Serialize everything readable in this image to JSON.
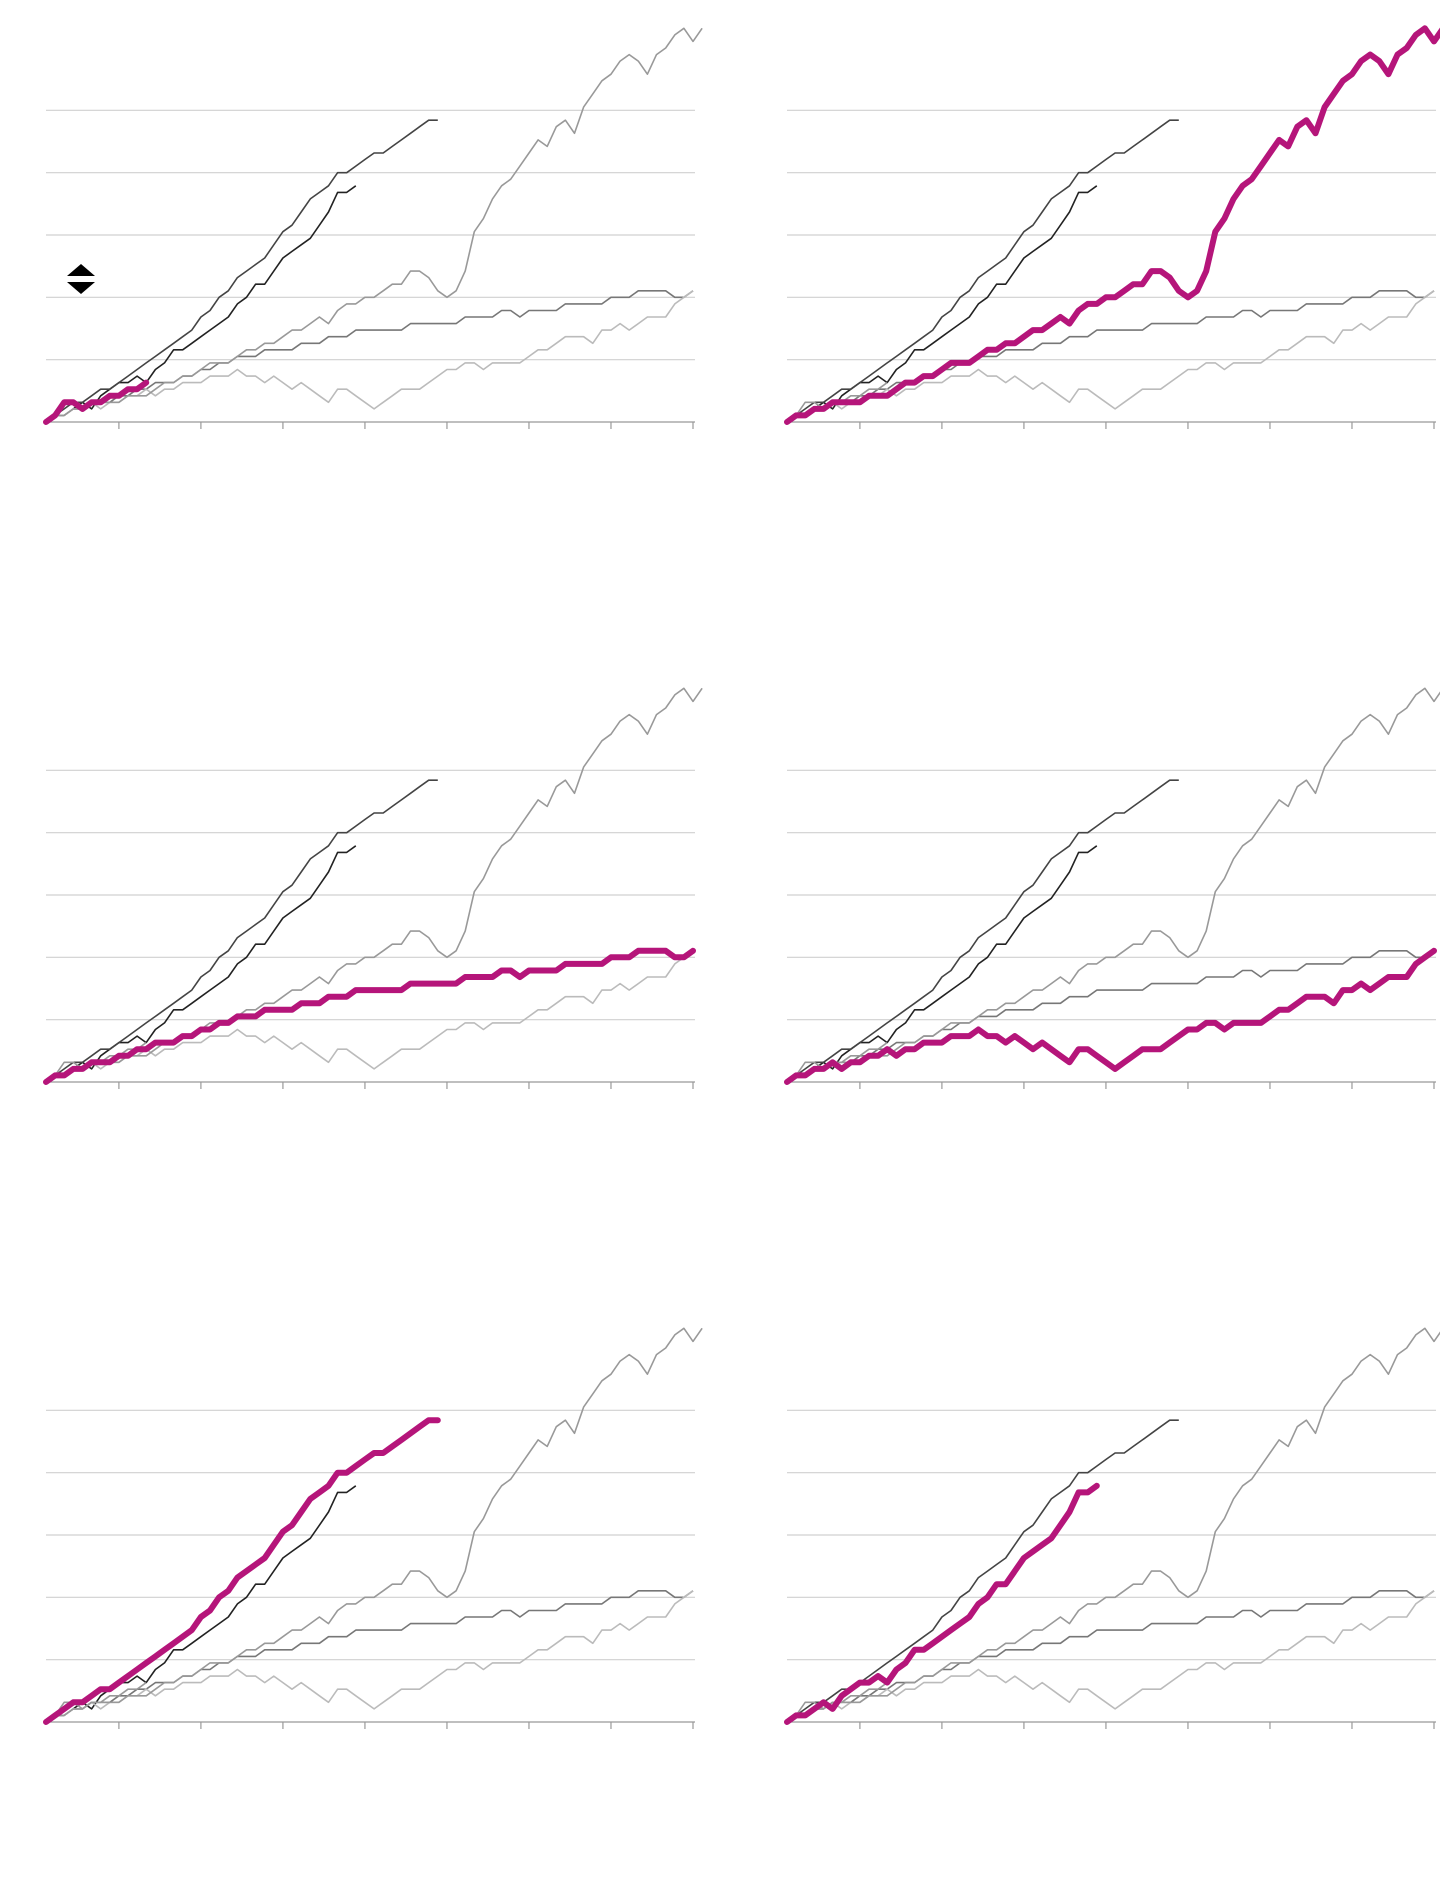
{
  "colors": {
    "highlight": "#b5157a",
    "grid": "#d0d0d0",
    "axis": "#999999"
  },
  "icons": {
    "sort": "sort-up-down-icon"
  },
  "chart_data": [
    {
      "type": "line",
      "highlight": "s6",
      "xlim": [
        0,
        71
      ],
      "ylim": [
        0,
        57
      ],
      "grid": true
    },
    {
      "type": "line",
      "highlight": "s5",
      "xlim": [
        0,
        71
      ],
      "ylim": [
        0,
        57
      ],
      "grid": true
    },
    {
      "type": "line",
      "highlight": "s3",
      "xlim": [
        0,
        71
      ],
      "ylim": [
        0,
        57
      ],
      "grid": true
    },
    {
      "type": "line",
      "highlight": "s4",
      "xlim": [
        0,
        71
      ],
      "ylim": [
        0,
        57
      ],
      "grid": true
    },
    {
      "type": "line",
      "highlight": "s2",
      "xlim": [
        0,
        71
      ],
      "ylim": [
        0,
        57
      ],
      "grid": true
    },
    {
      "type": "line",
      "highlight": "s1",
      "xlim": [
        0,
        71
      ],
      "ylim": [
        0,
        57
      ],
      "grid": true
    }
  ],
  "series": {
    "s1": {
      "shade": "#222222",
      "values": [
        0,
        1,
        1,
        2,
        3,
        2,
        4,
        5,
        6,
        6,
        7,
        6,
        8,
        9,
        11,
        11,
        12,
        13,
        14,
        15,
        16,
        18,
        19,
        21,
        21,
        23,
        25,
        26,
        27,
        28,
        30,
        32,
        35,
        35,
        36
      ]
    },
    "s2": {
      "shade": "#444444",
      "values": [
        0,
        1,
        2,
        3,
        3,
        4,
        5,
        5,
        6,
        7,
        8,
        9,
        10,
        11,
        12,
        13,
        14,
        16,
        17,
        19,
        20,
        22,
        23,
        24,
        25,
        27,
        29,
        30,
        32,
        34,
        35,
        36,
        38,
        38,
        39,
        40,
        41,
        41,
        42,
        43,
        44,
        45,
        46,
        46
      ]
    },
    "s3": {
      "shade": "#777777",
      "values": [
        0,
        1,
        1,
        2,
        2,
        3,
        3,
        3,
        4,
        4,
        5,
        5,
        6,
        6,
        6,
        7,
        7,
        8,
        8,
        9,
        9,
        10,
        10,
        10,
        11,
        11,
        11,
        11,
        12,
        12,
        12,
        13,
        13,
        13,
        14,
        14,
        14,
        14,
        14,
        14,
        15,
        15,
        15,
        15,
        15,
        15,
        16,
        16,
        16,
        16,
        17,
        17,
        16,
        17,
        17,
        17,
        17,
        18,
        18,
        18,
        18,
        18,
        19,
        19,
        19,
        20,
        20,
        20,
        20,
        19,
        19,
        20
      ]
    },
    "s4": {
      "shade": "#bbbbbb",
      "values": [
        0,
        1,
        1,
        2,
        2,
        3,
        2,
        3,
        3,
        4,
        4,
        5,
        4,
        5,
        5,
        6,
        6,
        6,
        7,
        7,
        7,
        8,
        7,
        7,
        6,
        7,
        6,
        5,
        6,
        5,
        4,
        3,
        5,
        5,
        4,
        3,
        2,
        3,
        4,
        5,
        5,
        5,
        6,
        7,
        8,
        8,
        9,
        9,
        8,
        9,
        9,
        9,
        9,
        10,
        11,
        11,
        12,
        13,
        13,
        13,
        12,
        14,
        14,
        15,
        14,
        15,
        16,
        16,
        16,
        18,
        19,
        20
      ]
    },
    "s5": {
      "shade": "#999999",
      "values": [
        0,
        1,
        1,
        2,
        2,
        3,
        3,
        3,
        3,
        4,
        4,
        4,
        5,
        6,
        6,
        7,
        7,
        8,
        9,
        9,
        9,
        10,
        11,
        11,
        12,
        12,
        13,
        14,
        14,
        15,
        16,
        15,
        17,
        18,
        18,
        19,
        19,
        20,
        21,
        21,
        23,
        23,
        22,
        20,
        19,
        20,
        23,
        29,
        31,
        34,
        36,
        37,
        39,
        41,
        43,
        42,
        45,
        46,
        44,
        48,
        50,
        52,
        53,
        55,
        56,
        55,
        53,
        56,
        57,
        59,
        60,
        58,
        60
      ]
    },
    "s6": {
      "shade": "#999999",
      "values": [
        0,
        1,
        3,
        3,
        2,
        3,
        3,
        4,
        4,
        5,
        5,
        6
      ]
    }
  }
}
